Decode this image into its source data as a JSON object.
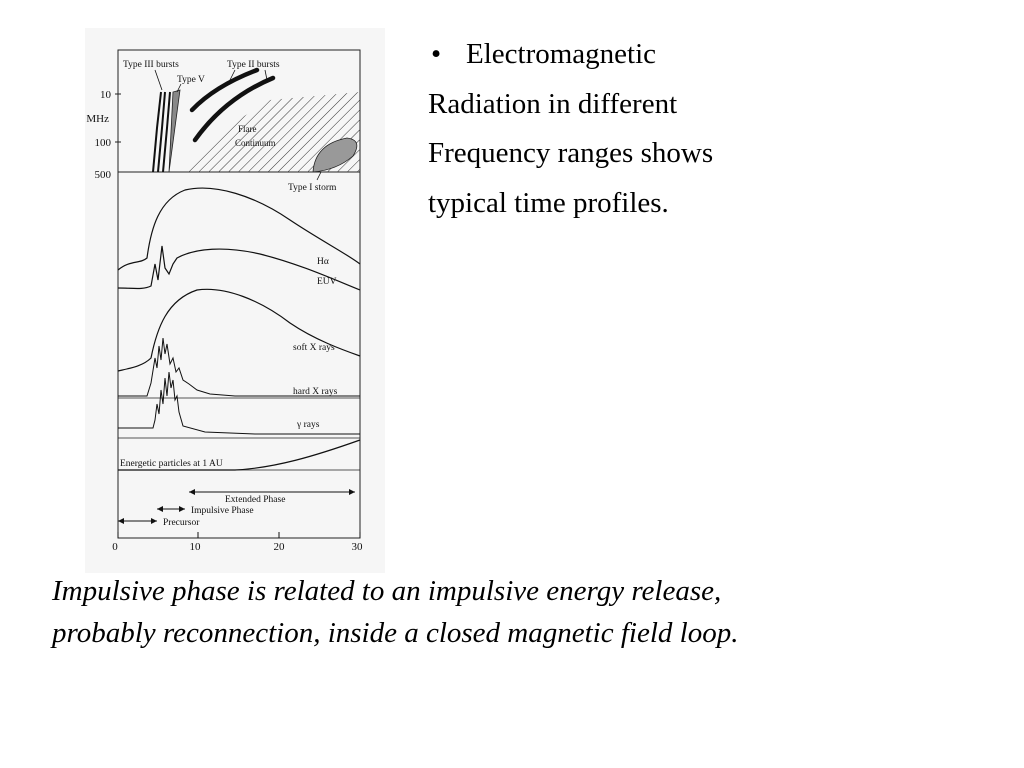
{
  "slide": {
    "bullet": {
      "marker": "•",
      "lines": [
        "Electromagnetic",
        "Radiation in different",
        "Frequency ranges shows",
        "typical time profiles."
      ]
    },
    "caption": {
      "lines": [
        "Impulsive phase is related to an impulsive energy release,",
        "probably reconnection, inside a closed magnetic field loop."
      ]
    }
  },
  "figure": {
    "radio_panel": {
      "freq_unit": "MHz",
      "freq_ticks": [
        "10",
        "100",
        "500"
      ],
      "labels": {
        "type3": "Type III bursts",
        "type5": "Type V",
        "type2": "Type II bursts",
        "flare_line1": "Flare",
        "flare_line2": "Continuum",
        "type1": "Type I storm"
      }
    },
    "profiles": {
      "halpha": "Hα",
      "euv": "EUV",
      "soft_xray": "soft X rays",
      "hard_xray": "hard X rays",
      "gamma": "γ rays",
      "particles": "Energetic particles at 1 AU"
    },
    "phases": {
      "extended": "Extended Phase",
      "impulsive": "Impulsive Phase",
      "precursor": "Precursor"
    },
    "time_axis": {
      "ticks": [
        "0",
        "10",
        "20",
        "30"
      ]
    }
  }
}
